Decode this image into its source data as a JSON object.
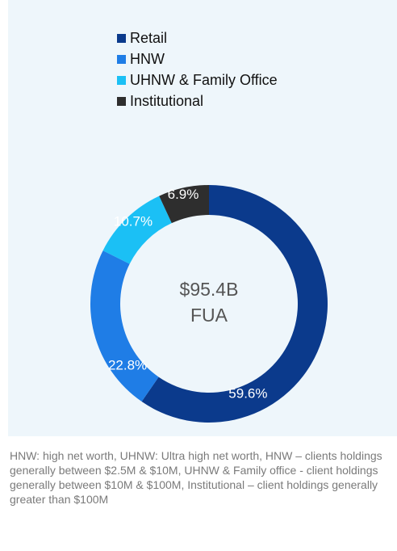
{
  "chart_data": {
    "type": "donut",
    "categories": [
      "Retail",
      "HNW",
      "UHNW & Family Office",
      "Institutional"
    ],
    "values": [
      59.6,
      22.8,
      10.7,
      6.9
    ],
    "value_labels": [
      "59.6%",
      "22.8%",
      "10.7%",
      "6.9%"
    ],
    "colors": [
      "#0b3a8c",
      "#1f7de6",
      "#1bc0f5",
      "#2e2e2e"
    ],
    "center_text": [
      "$95.4B",
      "FUA"
    ]
  },
  "footnote": "HNW: high net worth, UHNW: Ultra high net worth,  HNW – clients holdings generally between $2.5M & $10M, UHNW & Family office - client holdings generally between $10M & $100M, Institutional – client holdings generally greater than $100M"
}
